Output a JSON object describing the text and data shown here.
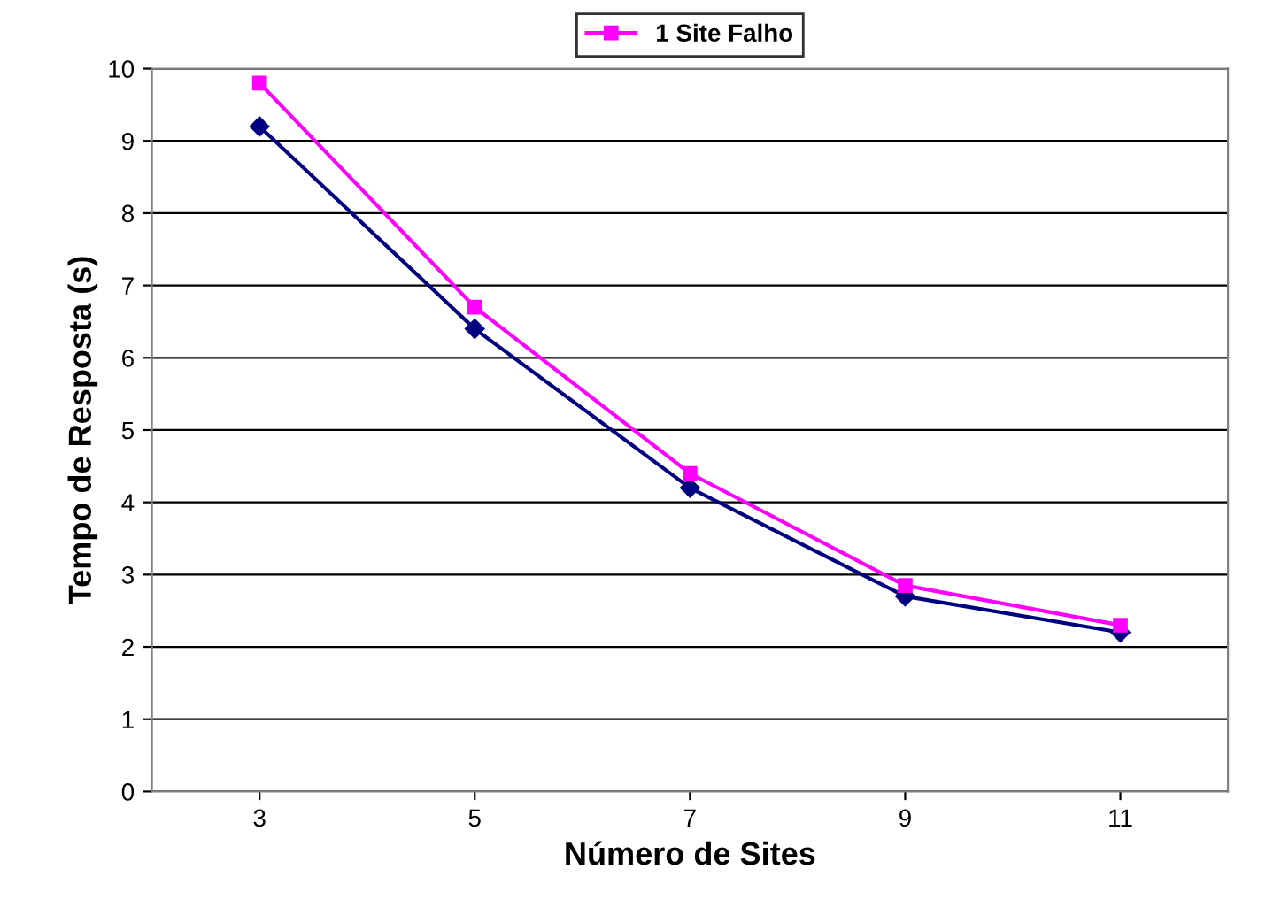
{
  "chart_data": {
    "type": "line",
    "xlabel": "Número de Sites",
    "ylabel": "Tempo de Resposta (s)",
    "categories": [
      "3",
      "5",
      "7",
      "9",
      "11"
    ],
    "series": [
      {
        "color": "#000080",
        "marker": "diamond",
        "values": [
          9.2,
          6.4,
          4.2,
          2.7,
          2.2
        ]
      },
      {
        "name": "1 Site Falho",
        "color": "#ff00ff",
        "marker": "square",
        "values": [
          9.8,
          6.7,
          4.4,
          2.85,
          2.3
        ]
      }
    ],
    "ylim": [
      0,
      10
    ],
    "yticks": [
      0,
      1,
      2,
      3,
      4,
      5,
      6,
      7,
      8,
      9,
      10
    ],
    "grid": "y",
    "legend": "top",
    "line_style": "solid"
  }
}
